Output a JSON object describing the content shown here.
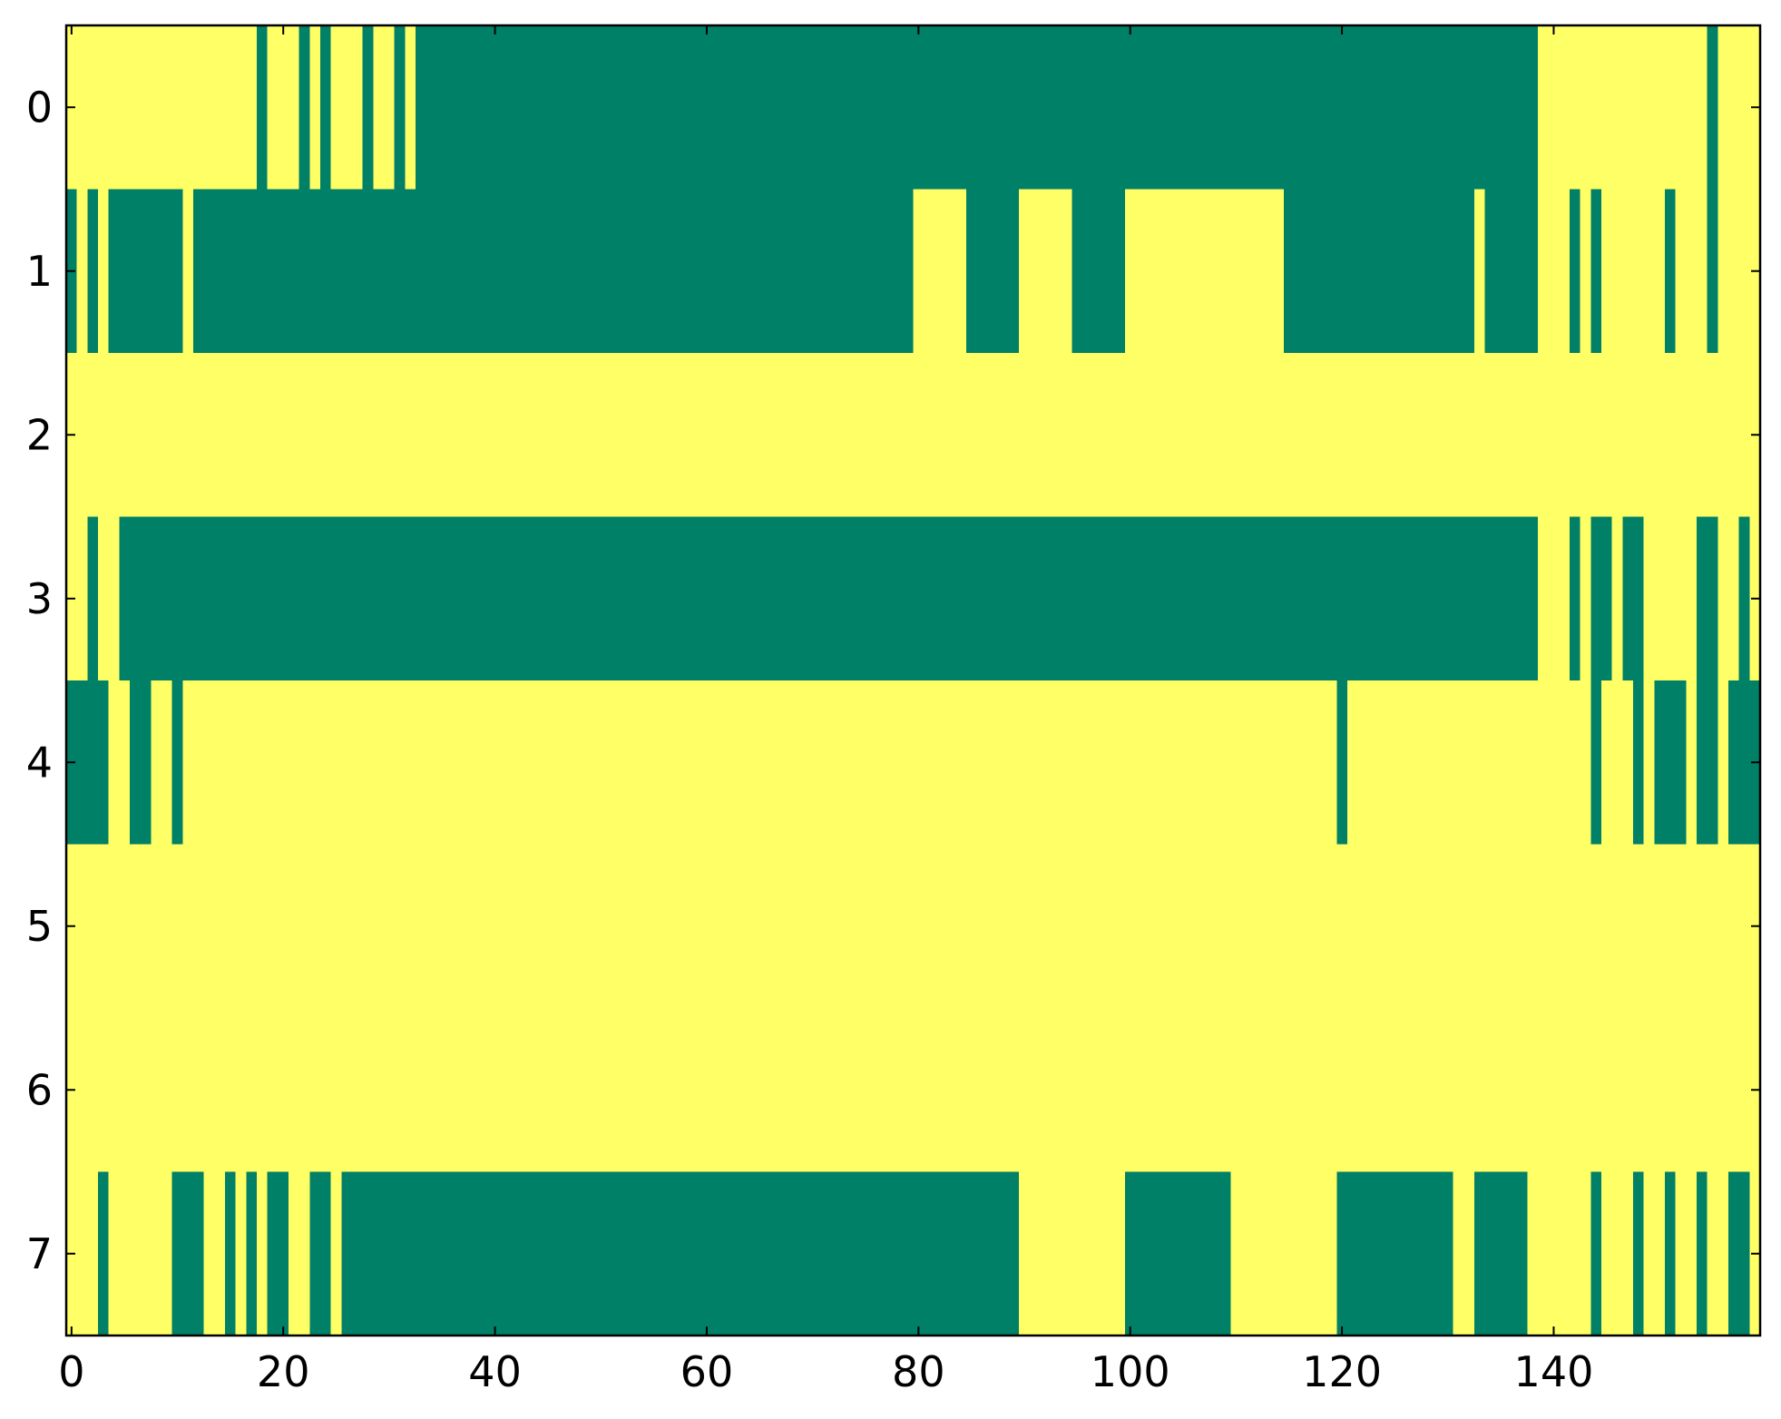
{
  "chart_data": {
    "type": "heatmap",
    "colors": [
      "#008066",
      "#ffff66"
    ],
    "xlim": [
      -0.5,
      159.5
    ],
    "ylim": [
      7.5,
      -0.5
    ],
    "xticks": [
      0,
      20,
      40,
      60,
      80,
      100,
      120,
      140
    ],
    "yticks": [
      0,
      1,
      2,
      3,
      4,
      5,
      6,
      7
    ],
    "z": [
      [
        1,
        1,
        1,
        1,
        1,
        1,
        1,
        1,
        1,
        1,
        1,
        1,
        1,
        1,
        1,
        1,
        1,
        1,
        0,
        1,
        1,
        1,
        0,
        1,
        0,
        1,
        1,
        1,
        0,
        1,
        1,
        0,
        1,
        0,
        0,
        0,
        0,
        0,
        0,
        0,
        0,
        0,
        0,
        0,
        0,
        0,
        0,
        0,
        0,
        0,
        0,
        0,
        0,
        0,
        0,
        0,
        0,
        0,
        0,
        0,
        0,
        0,
        0,
        0,
        0,
        0,
        0,
        0,
        0,
        0,
        0,
        0,
        0,
        0,
        0,
        0,
        0,
        0,
        0,
        0,
        0,
        0,
        0,
        0,
        0,
        0,
        0,
        0,
        0,
        0,
        0,
        0,
        0,
        0,
        0,
        0,
        0,
        0,
        0,
        0,
        0,
        0,
        0,
        0,
        0,
        0,
        0,
        0,
        0,
        0,
        0,
        0,
        0,
        0,
        0,
        0,
        0,
        0,
        0,
        0,
        0,
        0,
        0,
        0,
        0,
        0,
        0,
        0,
        0,
        0,
        0,
        0,
        0,
        0,
        0,
        0,
        0,
        0,
        0,
        1,
        1,
        1,
        1,
        1,
        1,
        1,
        1,
        1,
        1,
        1,
        1,
        1,
        1,
        1,
        1,
        0,
        1,
        1,
        1,
        1
      ],
      [
        0,
        1,
        0,
        1,
        0,
        0,
        0,
        0,
        0,
        0,
        0,
        1,
        0,
        0,
        0,
        0,
        0,
        0,
        0,
        0,
        0,
        0,
        0,
        0,
        0,
        0,
        0,
        0,
        0,
        0,
        0,
        0,
        0,
        0,
        0,
        0,
        0,
        0,
        0,
        0,
        0,
        0,
        0,
        0,
        0,
        0,
        0,
        0,
        0,
        0,
        0,
        0,
        0,
        0,
        0,
        0,
        0,
        0,
        0,
        0,
        0,
        0,
        0,
        0,
        0,
        0,
        0,
        0,
        0,
        0,
        0,
        0,
        0,
        0,
        0,
        0,
        0,
        0,
        0,
        0,
        1,
        1,
        1,
        1,
        1,
        0,
        0,
        0,
        0,
        0,
        1,
        1,
        1,
        1,
        1,
        0,
        0,
        0,
        0,
        0,
        1,
        1,
        1,
        1,
        1,
        1,
        1,
        1,
        1,
        1,
        1,
        1,
        1,
        1,
        1,
        0,
        0,
        0,
        0,
        0,
        0,
        0,
        0,
        0,
        0,
        0,
        0,
        0,
        0,
        0,
        0,
        0,
        0,
        1,
        0,
        0,
        0,
        0,
        0,
        1,
        1,
        1,
        0,
        1,
        0,
        1,
        1,
        1,
        1,
        1,
        1,
        0,
        1,
        1,
        1,
        0,
        1,
        1,
        1,
        1
      ],
      [
        1,
        1,
        1,
        1,
        1,
        1,
        1,
        1,
        1,
        1,
        1,
        1,
        1,
        1,
        1,
        1,
        1,
        1,
        1,
        1,
        1,
        1,
        1,
        1,
        1,
        1,
        1,
        1,
        1,
        1,
        1,
        1,
        1,
        1,
        1,
        1,
        1,
        1,
        1,
        1,
        1,
        1,
        1,
        1,
        1,
        1,
        1,
        1,
        1,
        1,
        1,
        1,
        1,
        1,
        1,
        1,
        1,
        1,
        1,
        1,
        1,
        1,
        1,
        1,
        1,
        1,
        1,
        1,
        1,
        1,
        1,
        1,
        1,
        1,
        1,
        1,
        1,
        1,
        1,
        1,
        1,
        1,
        1,
        1,
        1,
        1,
        1,
        1,
        1,
        1,
        1,
        1,
        1,
        1,
        1,
        1,
        1,
        1,
        1,
        1,
        1,
        1,
        1,
        1,
        1,
        1,
        1,
        1,
        1,
        1,
        1,
        1,
        1,
        1,
        1,
        1,
        1,
        1,
        1,
        1,
        1,
        1,
        1,
        1,
        1,
        1,
        1,
        1,
        1,
        1,
        1,
        1,
        1,
        1,
        1,
        1,
        1,
        1,
        1,
        1,
        1,
        1,
        1,
        1,
        1,
        1,
        1,
        1,
        1,
        1,
        1,
        1,
        1,
        1,
        1,
        1,
        1,
        1,
        1,
        1
      ],
      [
        1,
        1,
        0,
        1,
        1,
        0,
        0,
        0,
        0,
        0,
        0,
        0,
        0,
        0,
        0,
        0,
        0,
        0,
        0,
        0,
        0,
        0,
        0,
        0,
        0,
        0,
        0,
        0,
        0,
        0,
        0,
        0,
        0,
        0,
        0,
        0,
        0,
        0,
        0,
        0,
        0,
        0,
        0,
        0,
        0,
        0,
        0,
        0,
        0,
        0,
        0,
        0,
        0,
        0,
        0,
        0,
        0,
        0,
        0,
        0,
        0,
        0,
        0,
        0,
        0,
        0,
        0,
        0,
        0,
        0,
        0,
        0,
        0,
        0,
        0,
        0,
        0,
        0,
        0,
        0,
        0,
        0,
        0,
        0,
        0,
        0,
        0,
        0,
        0,
        0,
        0,
        0,
        0,
        0,
        0,
        0,
        0,
        0,
        0,
        0,
        0,
        0,
        0,
        0,
        0,
        0,
        0,
        0,
        0,
        0,
        0,
        0,
        0,
        0,
        0,
        0,
        0,
        0,
        0,
        0,
        0,
        0,
        0,
        0,
        0,
        0,
        0,
        0,
        0,
        0,
        0,
        0,
        0,
        0,
        0,
        0,
        0,
        0,
        0,
        1,
        1,
        1,
        0,
        1,
        0,
        0,
        1,
        0,
        0,
        1,
        1,
        1,
        1,
        1,
        0,
        0,
        1,
        1,
        0,
        1
      ],
      [
        0,
        0,
        0,
        0,
        1,
        1,
        0,
        0,
        1,
        1,
        0,
        1,
        1,
        1,
        1,
        1,
        1,
        1,
        1,
        1,
        1,
        1,
        1,
        1,
        1,
        1,
        1,
        1,
        1,
        1,
        1,
        1,
        1,
        1,
        1,
        1,
        1,
        1,
        1,
        1,
        1,
        1,
        1,
        1,
        1,
        1,
        1,
        1,
        1,
        1,
        1,
        1,
        1,
        1,
        1,
        1,
        1,
        1,
        1,
        1,
        1,
        1,
        1,
        1,
        1,
        1,
        1,
        1,
        1,
        1,
        1,
        1,
        1,
        1,
        1,
        1,
        1,
        1,
        1,
        1,
        1,
        1,
        1,
        1,
        1,
        1,
        1,
        1,
        1,
        1,
        1,
        1,
        1,
        1,
        1,
        1,
        1,
        1,
        1,
        1,
        1,
        1,
        1,
        1,
        1,
        1,
        1,
        1,
        1,
        1,
        1,
        1,
        1,
        1,
        1,
        1,
        1,
        1,
        1,
        1,
        0,
        1,
        1,
        1,
        1,
        1,
        1,
        1,
        1,
        1,
        1,
        1,
        1,
        1,
        1,
        1,
        1,
        1,
        1,
        1,
        1,
        1,
        1,
        1,
        0,
        1,
        1,
        1,
        0,
        1,
        0,
        0,
        0,
        1,
        0,
        0,
        1,
        0,
        0,
        0
      ],
      [
        1,
        1,
        1,
        1,
        1,
        1,
        1,
        1,
        1,
        1,
        1,
        1,
        1,
        1,
        1,
        1,
        1,
        1,
        1,
        1,
        1,
        1,
        1,
        1,
        1,
        1,
        1,
        1,
        1,
        1,
        1,
        1,
        1,
        1,
        1,
        1,
        1,
        1,
        1,
        1,
        1,
        1,
        1,
        1,
        1,
        1,
        1,
        1,
        1,
        1,
        1,
        1,
        1,
        1,
        1,
        1,
        1,
        1,
        1,
        1,
        1,
        1,
        1,
        1,
        1,
        1,
        1,
        1,
        1,
        1,
        1,
        1,
        1,
        1,
        1,
        1,
        1,
        1,
        1,
        1,
        1,
        1,
        1,
        1,
        1,
        1,
        1,
        1,
        1,
        1,
        1,
        1,
        1,
        1,
        1,
        1,
        1,
        1,
        1,
        1,
        1,
        1,
        1,
        1,
        1,
        1,
        1,
        1,
        1,
        1,
        1,
        1,
        1,
        1,
        1,
        1,
        1,
        1,
        1,
        1,
        1,
        1,
        1,
        1,
        1,
        1,
        1,
        1,
        1,
        1,
        1,
        1,
        1,
        1,
        1,
        1,
        1,
        1,
        1,
        1,
        1,
        1,
        1,
        1,
        1,
        1,
        1,
        1,
        1,
        1,
        1,
        1,
        1,
        1,
        1,
        1,
        1,
        1,
        1,
        1
      ],
      [
        1,
        1,
        1,
        1,
        1,
        1,
        1,
        1,
        1,
        1,
        1,
        1,
        1,
        1,
        1,
        1,
        1,
        1,
        1,
        1,
        1,
        1,
        1,
        1,
        1,
        1,
        1,
        1,
        1,
        1,
        1,
        1,
        1,
        1,
        1,
        1,
        1,
        1,
        1,
        1,
        1,
        1,
        1,
        1,
        1,
        1,
        1,
        1,
        1,
        1,
        1,
        1,
        1,
        1,
        1,
        1,
        1,
        1,
        1,
        1,
        1,
        1,
        1,
        1,
        1,
        1,
        1,
        1,
        1,
        1,
        1,
        1,
        1,
        1,
        1,
        1,
        1,
        1,
        1,
        1,
        1,
        1,
        1,
        1,
        1,
        1,
        1,
        1,
        1,
        1,
        1,
        1,
        1,
        1,
        1,
        1,
        1,
        1,
        1,
        1,
        1,
        1,
        1,
        1,
        1,
        1,
        1,
        1,
        1,
        1,
        1,
        1,
        1,
        1,
        1,
        1,
        1,
        1,
        1,
        1,
        1,
        1,
        1,
        1,
        1,
        1,
        1,
        1,
        1,
        1,
        1,
        1,
        1,
        1,
        1,
        1,
        1,
        1,
        1,
        1,
        1,
        1,
        1,
        1,
        1,
        1,
        1,
        1,
        1,
        1,
        1,
        1,
        1,
        1,
        1,
        1,
        1,
        1,
        1,
        1
      ],
      [
        1,
        1,
        1,
        0,
        1,
        1,
        1,
        1,
        1,
        1,
        0,
        0,
        0,
        1,
        1,
        0,
        1,
        0,
        1,
        0,
        0,
        1,
        1,
        0,
        0,
        1,
        0,
        0,
        0,
        0,
        0,
        0,
        0,
        0,
        0,
        0,
        0,
        0,
        0,
        0,
        0,
        0,
        0,
        0,
        0,
        0,
        0,
        0,
        0,
        0,
        0,
        0,
        0,
        0,
        0,
        0,
        0,
        0,
        0,
        0,
        0,
        0,
        0,
        0,
        0,
        0,
        0,
        0,
        0,
        0,
        0,
        0,
        0,
        0,
        0,
        0,
        0,
        0,
        0,
        0,
        0,
        0,
        0,
        0,
        0,
        0,
        0,
        0,
        0,
        0,
        1,
        1,
        1,
        1,
        1,
        1,
        1,
        1,
        1,
        1,
        0,
        0,
        0,
        0,
        0,
        0,
        0,
        0,
        0,
        0,
        1,
        1,
        1,
        1,
        1,
        1,
        1,
        1,
        1,
        1,
        0,
        0,
        0,
        0,
        0,
        0,
        0,
        0,
        0,
        0,
        0,
        1,
        1,
        0,
        0,
        0,
        0,
        0,
        1,
        1,
        1,
        1,
        1,
        1,
        0,
        1,
        1,
        1,
        0,
        1,
        1,
        0,
        1,
        1,
        0,
        1,
        1,
        0,
        0,
        1
      ]
    ]
  }
}
